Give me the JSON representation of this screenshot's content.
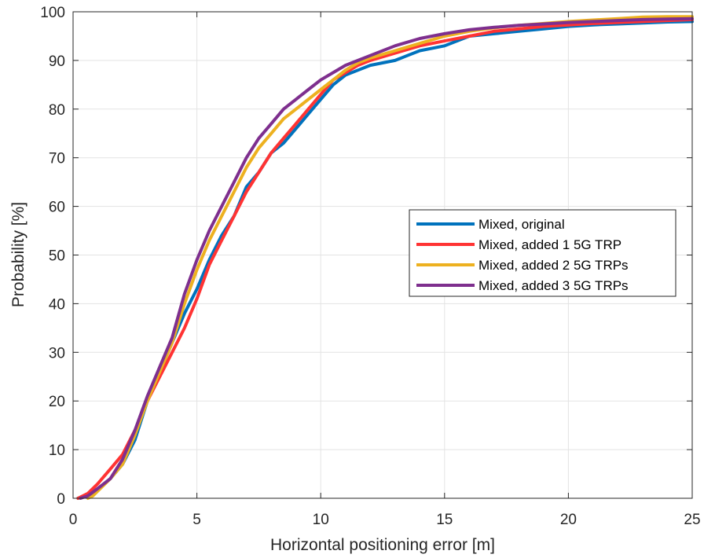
{
  "chart_data": {
    "type": "line",
    "xlabel": "Horizontal positioning error [m]",
    "ylabel": "Probability [%]",
    "xlim": [
      0,
      25
    ],
    "ylim": [
      0,
      100
    ],
    "xticks": [
      0,
      5,
      10,
      15,
      20,
      25
    ],
    "yticks": [
      0,
      10,
      20,
      30,
      40,
      50,
      60,
      70,
      80,
      90,
      100
    ],
    "grid": true,
    "legend_position": "center-right",
    "series": [
      {
        "name": "Mixed, original",
        "color": "#0072BD",
        "x": [
          0.2,
          0.6,
          1.0,
          1.5,
          2.0,
          2.5,
          3.0,
          3.5,
          4.0,
          4.5,
          5.0,
          5.5,
          6.0,
          6.5,
          7.0,
          7.5,
          8.0,
          8.5,
          9.0,
          9.5,
          10.0,
          10.5,
          11.0,
          11.5,
          12.0,
          12.5,
          13.0,
          13.5,
          14.0,
          14.5,
          15.0,
          15.5,
          16.0,
          17.0,
          18.0,
          19.0,
          20.0,
          21.0,
          22.0,
          23.0,
          24.0,
          25.0
        ],
        "y": [
          0,
          0.5,
          2,
          4,
          7,
          12,
          20,
          26,
          32,
          38,
          43,
          49,
          54,
          58,
          64,
          67,
          71,
          73,
          76,
          79,
          82,
          85,
          87,
          88,
          89,
          89.5,
          90,
          91,
          92,
          92.5,
          93,
          94,
          95,
          95.5,
          96,
          96.5,
          97,
          97.3,
          97.5,
          97.7,
          97.9,
          98
        ]
      },
      {
        "name": "Mixed, added 1 5G TRP",
        "color": "#FF3333",
        "x": [
          0.2,
          0.6,
          1.0,
          1.5,
          2.0,
          2.5,
          3.0,
          3.5,
          4.0,
          4.5,
          5.0,
          5.5,
          6.0,
          6.5,
          7.0,
          7.5,
          8.0,
          8.5,
          9.0,
          9.5,
          10.0,
          10.5,
          11.0,
          11.5,
          12.0,
          13.0,
          14.0,
          15.0,
          16.0,
          17.0,
          18.0,
          19.0,
          20.0,
          21.0,
          22.0,
          23.0,
          24.0,
          25.0
        ],
        "y": [
          0,
          1,
          3,
          6,
          9,
          14,
          20,
          25,
          30,
          35,
          41,
          48,
          53,
          58,
          63,
          67,
          71,
          74,
          77,
          80,
          83,
          86,
          87.5,
          89,
          90,
          91.5,
          93,
          94,
          95,
          96,
          96.5,
          97,
          97.3,
          97.6,
          97.8,
          98,
          98.2,
          98.4
        ]
      },
      {
        "name": "Mixed, added 2 5G TRPs",
        "color": "#EDB120",
        "x": [
          0.6,
          0.8,
          1.0,
          1.5,
          2.0,
          2.5,
          3.0,
          3.5,
          4.0,
          4.5,
          5.0,
          5.5,
          6.0,
          6.5,
          7.0,
          7.5,
          8.0,
          8.5,
          9.0,
          9.5,
          10.0,
          10.5,
          11.0,
          11.5,
          12.0,
          13.0,
          14.0,
          15.0,
          16.0,
          17.0,
          18.0,
          19.0,
          20.0,
          21.0,
          22.0,
          23.0,
          24.0,
          25.0
        ],
        "y": [
          0,
          0.5,
          1.5,
          4,
          7,
          13,
          20,
          26,
          32,
          40,
          47,
          53,
          58,
          63,
          68,
          72,
          75,
          78,
          80,
          82,
          84,
          86,
          88,
          89.5,
          90.5,
          92,
          93.5,
          95,
          96,
          96.7,
          97.2,
          97.6,
          98,
          98.3,
          98.6,
          98.9,
          99,
          99
        ]
      },
      {
        "name": "Mixed, added 3 5G TRPs",
        "color": "#7E2F8E",
        "x": [
          0.3,
          0.6,
          1.0,
          1.5,
          2.0,
          2.5,
          3.0,
          3.5,
          4.0,
          4.5,
          5.0,
          5.5,
          6.0,
          6.5,
          7.0,
          7.5,
          8.0,
          8.5,
          9.0,
          9.5,
          10.0,
          10.5,
          11.0,
          11.5,
          12.0,
          13.0,
          14.0,
          15.0,
          16.0,
          17.0,
          18.0,
          19.0,
          20.0,
          21.0,
          22.0,
          23.0,
          24.0,
          25.0
        ],
        "y": [
          0,
          0.5,
          2,
          4,
          8,
          14,
          21,
          27,
          33,
          42,
          49,
          55,
          60,
          65,
          70,
          74,
          77,
          80,
          82,
          84,
          86,
          87.5,
          89,
          90,
          91,
          93,
          94.5,
          95.5,
          96.3,
          96.8,
          97.2,
          97.5,
          97.8,
          98,
          98.2,
          98.4,
          98.5,
          98.6
        ]
      }
    ]
  }
}
